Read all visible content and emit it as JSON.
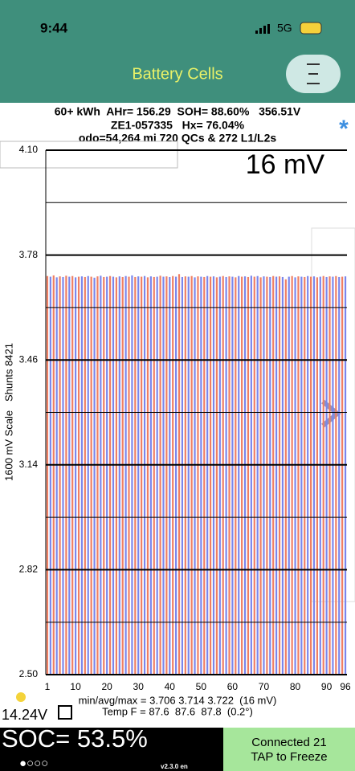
{
  "status_bar": {
    "time": "9:44",
    "network": "5G"
  },
  "header": {
    "title": "Battery Cells"
  },
  "summary": {
    "line1": "60+ kWh  AHr= 156.29  SOH= 88.60%   356.51V",
    "line2": "ZE1-057335   Hx= 76.04%",
    "line3": "odo=54,264 mi 720 QCs & 272 L1/L2s",
    "star": "*"
  },
  "chart_data": {
    "type": "bar",
    "scale_label": "16 mV",
    "y_label": "1600 mV Scale   Shunts 8421",
    "ylim": [
      2.5,
      4.1
    ],
    "yticks": [
      {
        "value": 2.5,
        "label": "2.50"
      },
      2.82,
      3.14,
      3.46,
      3.78,
      {
        "value": 4.1,
        "label": "4.10"
      }
    ],
    "minor_yticks": [
      2.66,
      2.98,
      3.3,
      3.62,
      3.94
    ],
    "xlim": [
      0.5,
      96.5
    ],
    "xticks": [
      1,
      10,
      20,
      30,
      40,
      50,
      60,
      70,
      80,
      90,
      96
    ],
    "bar_colors": [
      "#ef7f63",
      "#7a86ec"
    ],
    "values": [
      3.716,
      3.714,
      3.718,
      3.712,
      3.715,
      3.713,
      3.717,
      3.714,
      3.716,
      3.712,
      3.714,
      3.715,
      3.713,
      3.716,
      3.714,
      3.711,
      3.715,
      3.717,
      3.713,
      3.714,
      3.716,
      3.714,
      3.712,
      3.715,
      3.713,
      3.716,
      3.714,
      3.718,
      3.713,
      3.715,
      3.714,
      3.716,
      3.712,
      3.715,
      3.713,
      3.714,
      3.717,
      3.714,
      3.715,
      3.713,
      3.716,
      3.714,
      3.722,
      3.713,
      3.715,
      3.714,
      3.716,
      3.712,
      3.715,
      3.714,
      3.713,
      3.716,
      3.714,
      3.715,
      3.712,
      3.714,
      3.716,
      3.713,
      3.715,
      3.714,
      3.712,
      3.716,
      3.714,
      3.715,
      3.713,
      3.717,
      3.714,
      3.716,
      3.712,
      3.715,
      3.714,
      3.713,
      3.716,
      3.714,
      3.715,
      3.713,
      3.706,
      3.714,
      3.716,
      3.712,
      3.715,
      3.714,
      3.713,
      3.716,
      3.714,
      3.715,
      3.712,
      3.714,
      3.716,
      3.713,
      3.715,
      3.714,
      3.716,
      3.713,
      3.714,
      3.715
    ],
    "stats_line": "min/avg/max = 3.706 3.714 3.722  (16 mV)",
    "temp_line": "Temp F = 87.6  87.6  87.8  (0.2°)"
  },
  "footer": {
    "voltage": "14.24V",
    "soc": "SOC= 53.5%",
    "dots": "●○○○",
    "version": "v2.3.0 en",
    "connected": "Connected 21",
    "freeze": "TAP to Freeze"
  }
}
